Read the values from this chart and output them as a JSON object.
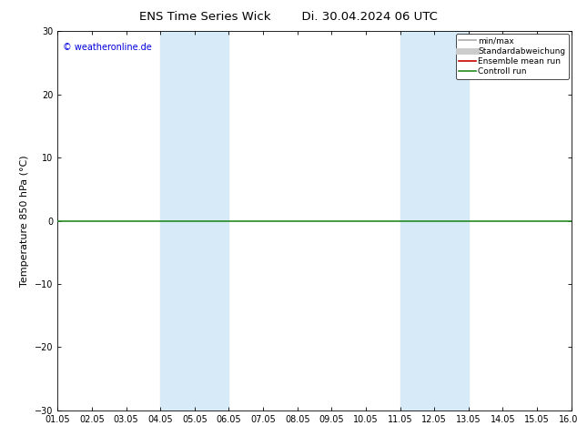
{
  "title": "ENS Time Series Wick        Di. 30.04.2024 06 UTC",
  "ylabel": "Temperature 850 hPa (°C)",
  "ylim": [
    -30,
    30
  ],
  "yticks": [
    -30,
    -20,
    -10,
    0,
    10,
    20,
    30
  ],
  "x_labels": [
    "01.05",
    "02.05",
    "03.05",
    "04.05",
    "05.05",
    "06.05",
    "07.05",
    "08.05",
    "09.05",
    "10.05",
    "11.05",
    "12.05",
    "13.05",
    "14.05",
    "15.05",
    "16.05"
  ],
  "x_values": [
    0,
    1,
    2,
    3,
    4,
    5,
    6,
    7,
    8,
    9,
    10,
    11,
    12,
    13,
    14,
    15
  ],
  "shaded_bands": [
    {
      "xmin": 3,
      "xmax": 5,
      "color": "#d6eaf8"
    },
    {
      "xmin": 10,
      "xmax": 12,
      "color": "#d6eaf8"
    }
  ],
  "hline_y": 0,
  "hline_color": "#228B22",
  "hline_lw": 1.2,
  "legend_entries": [
    {
      "label": "min/max",
      "color": "#aaaaaa",
      "lw": 1.2,
      "type": "line"
    },
    {
      "label": "Standardabweichung",
      "color": "#cccccc",
      "lw": 5,
      "type": "line"
    },
    {
      "label": "Ensemble mean run",
      "color": "#cc0000",
      "lw": 1.2,
      "type": "line"
    },
    {
      "label": "Controll run",
      "color": "#228B22",
      "lw": 1.2,
      "type": "line"
    }
  ],
  "watermark": "© weatheronline.de",
  "watermark_color": "#0000dd",
  "background_color": "#ffffff",
  "plot_bg_color": "#ffffff",
  "title_fontsize": 9.5,
  "tick_fontsize": 7,
  "ylabel_fontsize": 8,
  "legend_fontsize": 6.5,
  "watermark_fontsize": 7
}
